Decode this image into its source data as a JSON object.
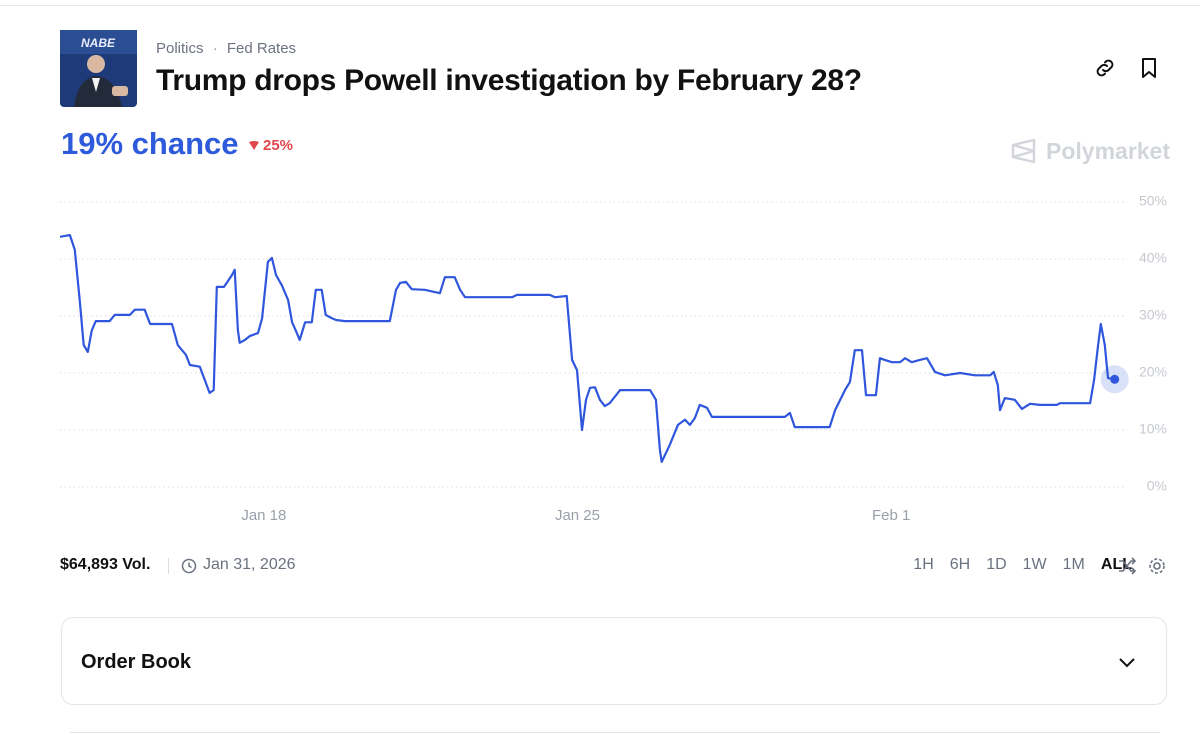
{
  "header": {
    "breadcrumbs": [
      "Politics",
      "Fed Rates"
    ],
    "title": "Trump drops Powell investigation by February 28?"
  },
  "chance": "19% chance",
  "change": "25%",
  "brand": "Polymarket",
  "chart_data": {
    "type": "line",
    "color": "#2f56dc",
    "grid": true,
    "x": [
      13.45,
      13.67,
      13.78,
      13.89,
      13.98,
      14.07,
      14.16,
      14.25,
      14.56,
      14.67,
      15.01,
      15.12,
      15.34,
      15.46,
      15.95,
      16.08,
      16.26,
      16.35,
      16.57,
      16.68,
      16.79,
      16.88,
      16.95,
      17.11,
      17.29,
      17.35,
      17.42,
      17.46,
      17.58,
      17.69,
      17.87,
      17.96,
      18.09,
      18.18,
      18.27,
      18.4,
      18.54,
      18.63,
      18.71,
      18.8,
      18.92,
      19.07,
      19.16,
      19.29,
      19.38,
      19.52,
      19.61,
      19.81,
      20.81,
      20.95,
      21.04,
      21.17,
      21.3,
      21.59,
      21.93,
      22.04,
      22.26,
      22.38,
      22.49,
      23.54,
      23.65,
      24.38,
      24.5,
      24.76,
      24.88,
      24.99,
      25.1,
      25.19,
      25.28,
      25.39,
      25.5,
      25.61,
      25.72,
      25.95,
      26.62,
      26.75,
      26.84,
      26.88,
      27.06,
      27.24,
      27.4,
      27.51,
      27.62,
      27.73,
      27.89,
      28.0,
      29.63,
      29.74,
      29.85,
      30.63,
      30.75,
      30.97,
      31.08,
      31.19,
      31.35,
      31.44,
      31.66,
      31.75,
      31.86,
      32.02,
      32.2,
      32.31,
      32.46,
      32.64,
      32.8,
      32.98,
      33.2,
      33.54,
      33.87,
      34.21,
      34.29,
      34.38,
      34.43,
      34.54,
      34.76,
      34.92,
      35.1,
      35.32,
      35.7,
      35.77,
      36.44,
      36.53,
      36.62,
      36.68,
      36.77,
      36.84,
      36.99
    ],
    "values": [
      43.9,
      44.2,
      41.6,
      32.8,
      24.9,
      23.7,
      27.5,
      29.1,
      29.1,
      30.2,
      30.2,
      31.1,
      31.1,
      28.6,
      28.6,
      24.9,
      23.2,
      21.4,
      21.1,
      18.8,
      16.5,
      17.0,
      35.1,
      35.1,
      37.2,
      38.1,
      27.5,
      25.3,
      25.8,
      26.5,
      27.0,
      29.6,
      39.5,
      40.2,
      37.2,
      35.4,
      32.8,
      28.9,
      27.5,
      25.8,
      28.9,
      28.9,
      34.6,
      34.6,
      30.2,
      29.6,
      29.3,
      29.1,
      29.1,
      34.6,
      35.8,
      36.0,
      34.7,
      34.6,
      34.0,
      36.8,
      36.8,
      34.6,
      33.3,
      33.3,
      33.7,
      33.7,
      33.3,
      33.5,
      22.3,
      20.5,
      10.0,
      15.3,
      17.4,
      17.5,
      15.3,
      14.2,
      14.7,
      17.0,
      17.0,
      15.3,
      6.5,
      4.4,
      7.4,
      10.9,
      11.8,
      10.9,
      12.1,
      14.4,
      13.9,
      12.3,
      12.3,
      13.0,
      10.5,
      10.5,
      13.5,
      17.0,
      18.4,
      24.0,
      24.0,
      16.1,
      16.1,
      22.6,
      22.3,
      21.9,
      21.9,
      22.6,
      21.9,
      22.3,
      22.6,
      20.2,
      19.6,
      20.0,
      19.6,
      19.6,
      20.2,
      17.9,
      13.5,
      15.6,
      15.3,
      13.7,
      14.6,
      14.4,
      14.4,
      14.7,
      14.7,
      18.8,
      24.9,
      28.6,
      24.9,
      19.1,
      18.9
    ],
    "xlim": [
      13.45,
      37.22
    ],
    "xticks": [
      {
        "value": 18,
        "label": "Jan 18"
      },
      {
        "value": 25,
        "label": "Jan 25"
      },
      {
        "value": 32,
        "label": "Feb 1"
      }
    ],
    "ylim": [
      0,
      50
    ],
    "yticks": [
      {
        "value": 0,
        "label": "0%"
      },
      {
        "value": 10,
        "label": "10%"
      },
      {
        "value": 20,
        "label": "20%"
      },
      {
        "value": 30,
        "label": "30%"
      },
      {
        "value": 40,
        "label": "40%"
      },
      {
        "value": 50,
        "label": "50%"
      }
    ]
  },
  "footer": {
    "volume": "$64,893 Vol.",
    "date": "Jan 31, 2026",
    "ranges": [
      "1H",
      "6H",
      "1D",
      "1W",
      "1M",
      "ALL"
    ],
    "selected": "ALL"
  },
  "order_book": "Order Book"
}
